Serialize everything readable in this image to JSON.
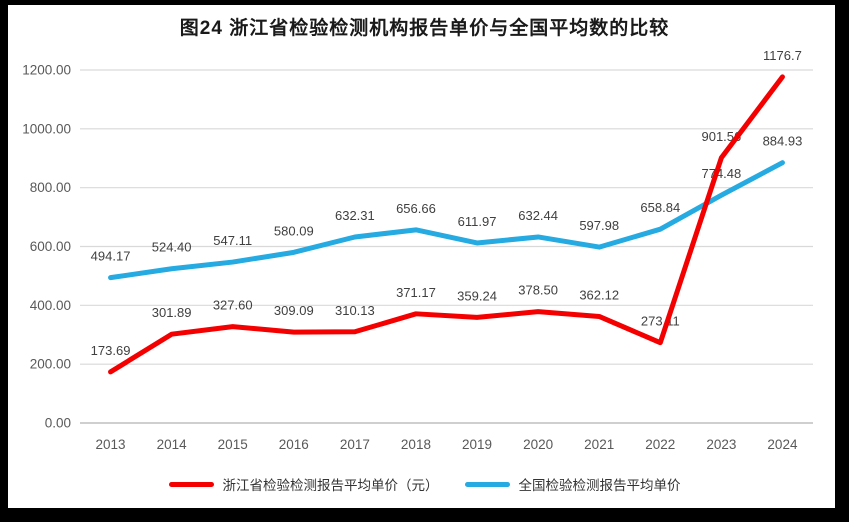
{
  "title": "图24  浙江省检验检测机构报告单价与全国平均数的比较",
  "colors": {
    "zhejiang_line": "#F40000",
    "national_line": "#25AAE1",
    "gridline": "#D9D9D9",
    "axis_line": "#BFBFBF",
    "tick_text": "#595959",
    "data_label_text": "#404040",
    "title_text": "#1A1A1A",
    "frame": "#000000",
    "background": "#FFFFFF"
  },
  "chart_data": {
    "type": "line",
    "title": "图24  浙江省检验检测机构报告单价与全国平均数的比较",
    "categories": [
      "2013",
      "2014",
      "2015",
      "2016",
      "2017",
      "2018",
      "2019",
      "2020",
      "2021",
      "2022",
      "2023",
      "2024"
    ],
    "series": [
      {
        "name": "浙江省检验检测报告平均单价（元）",
        "color": "#F40000",
        "values": [
          173.69,
          301.89,
          327.6,
          309.09,
          310.13,
          371.17,
          359.24,
          378.5,
          362.12,
          273.11,
          901.56,
          1176.7
        ],
        "labels": [
          "173.69",
          "301.89",
          "327.60",
          "309.09",
          "310.13",
          "371.17",
          "359.24",
          "378.50",
          "362.12",
          "273.11",
          "901.56",
          "1176.7"
        ]
      },
      {
        "name": "全国检验检测报告平均单价",
        "color": "#25AAE1",
        "values": [
          494.17,
          524.4,
          547.11,
          580.09,
          632.31,
          656.66,
          611.97,
          632.44,
          597.98,
          658.84,
          774.48,
          884.93
        ],
        "labels": [
          "494.17",
          "524.40",
          "547.11",
          "580.09",
          "632.31",
          "656.66",
          "611.97",
          "632.44",
          "597.98",
          "658.84",
          "774.48",
          "884.93"
        ]
      }
    ],
    "xlabel": "",
    "ylabel": "",
    "ylim": [
      0,
      1200
    ],
    "ytick_step": 200,
    "ytick_labels": [
      "0.00",
      "200.00",
      "400.00",
      "600.00",
      "800.00",
      "1000.00",
      "1200.00"
    ],
    "grid": true,
    "legend_position": "bottom"
  }
}
